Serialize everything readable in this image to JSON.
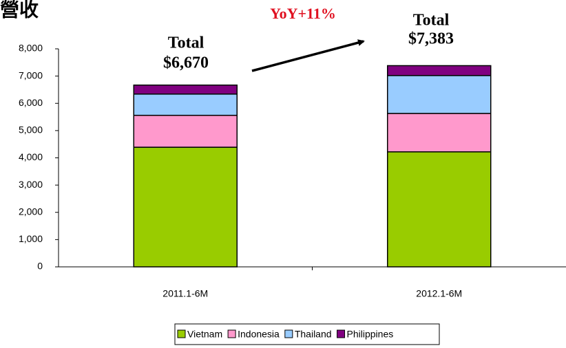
{
  "chart_data": {
    "type": "stacked-bar",
    "title": "營收",
    "annotations": [
      "Total",
      "$6,670",
      "Total",
      "$7,383",
      "YoY+11%"
    ],
    "categories": [
      "2011.1-6M",
      "2012.1-6M"
    ],
    "series": [
      {
        "name": "Vietnam",
        "color": "#99cc00",
        "values": [
          4390,
          4220
        ]
      },
      {
        "name": "Indonesia",
        "color": "#ff99cc",
        "values": [
          1170,
          1410
        ]
      },
      {
        "name": "Thailand",
        "color": "#99ccff",
        "values": [
          780,
          1390
        ]
      },
      {
        "name": "Philippines",
        "color": "#800080",
        "values": [
          330,
          363
        ]
      }
    ],
    "ylim": [
      0,
      8000
    ],
    "yticks": [
      0,
      {
        "value": 1000,
        "label": "1,000"
      },
      {
        "value": 2000,
        "label": "2,000"
      },
      {
        "value": 3000,
        "label": "3,000"
      },
      {
        "value": 4000,
        "label": "4,000"
      },
      {
        "value": 5000,
        "label": "5,000"
      },
      {
        "value": 6000,
        "label": "6,000"
      },
      {
        "value": 7000,
        "label": "7,000"
      },
      {
        "value": 8000,
        "label": "8,000"
      }
    ],
    "legend": "bottom"
  }
}
